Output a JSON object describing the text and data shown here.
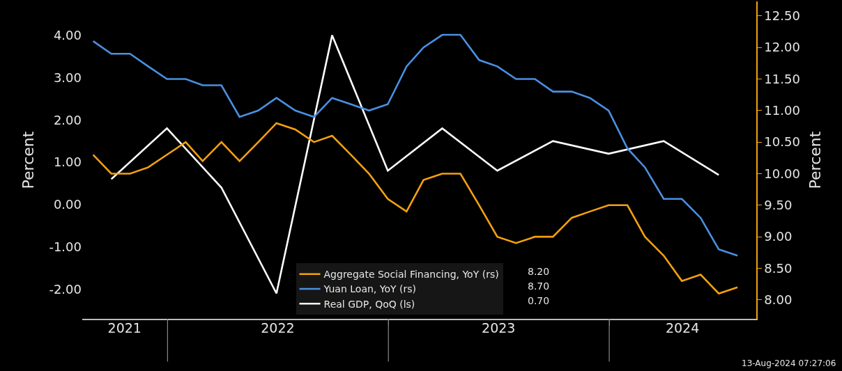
{
  "chart_data": {
    "type": "line",
    "ylabel": "Percent",
    "y2label": "Percent",
    "x": [
      "2021-08-31",
      "2021-09-30",
      "2021-10-31",
      "2021-11-30",
      "2021-12-31",
      "2022-01-31",
      "2022-02-28",
      "2022-03-31",
      "2022-04-30",
      "2022-05-31",
      "2022-06-30",
      "2022-07-31",
      "2022-08-31",
      "2022-09-30",
      "2022-10-31",
      "2022-11-30",
      "2022-12-31",
      "2023-01-31",
      "2023-02-28",
      "2023-03-31",
      "2023-04-30",
      "2023-05-31",
      "2023-06-30",
      "2023-07-31",
      "2023-08-31",
      "2023-09-30",
      "2023-10-31",
      "2023-11-30",
      "2023-12-31",
      "2024-01-31",
      "2024-02-29",
      "2024-03-31",
      "2024-04-30",
      "2024-05-31",
      "2024-06-30",
      "2024-07-31"
    ],
    "series": [
      {
        "name": "Aggregate Social Financing, YoY (rs)",
        "color": "#f5a00f",
        "axis": "y2",
        "values": [
          10.3,
          10.0,
          10.0,
          10.1,
          10.3,
          10.5,
          10.2,
          10.5,
          10.2,
          10.5,
          10.8,
          10.7,
          10.5,
          10.6,
          10.3,
          10.0,
          9.6,
          9.4,
          9.9,
          10.0,
          10.0,
          9.5,
          9.0,
          8.9,
          9.0,
          9.0,
          9.3,
          9.4,
          9.5,
          9.5,
          9.0,
          8.7,
          8.3,
          8.4,
          8.1,
          8.2
        ]
      },
      {
        "name": "Yuan Loan, YoY (rs)",
        "color": "#4a90e2",
        "axis": "y2",
        "values": [
          12.1,
          11.9,
          11.9,
          11.7,
          11.5,
          11.5,
          11.4,
          11.4,
          10.9,
          11.0,
          11.2,
          11.0,
          10.9,
          11.2,
          11.1,
          11.0,
          11.1,
          11.7,
          12.0,
          12.2,
          12.2,
          11.8,
          11.7,
          11.5,
          11.5,
          11.3,
          11.3,
          11.2,
          11.0,
          10.4,
          10.1,
          9.6,
          9.6,
          9.3,
          8.8,
          8.7
        ]
      },
      {
        "name": "Real GDP, QoQ (ls)",
        "color": "#ffffff",
        "axis": "y",
        "x": [
          "2021-09-30",
          "2021-12-31",
          "2022-03-31",
          "2022-06-30",
          "2022-09-30",
          "2022-12-31",
          "2023-03-31",
          "2023-06-30",
          "2023-09-30",
          "2023-12-31",
          "2024-03-31",
          "2024-06-30"
        ],
        "values": [
          0.6,
          1.8,
          0.4,
          -2.1,
          4.0,
          0.8,
          1.8,
          0.8,
          1.5,
          1.2,
          1.5,
          0.7
        ]
      }
    ],
    "xlim": [
      "2021-08-13",
      "2024-08-31"
    ],
    "xticks": [
      {
        "value": "2021-10-22",
        "label": "2021"
      },
      {
        "value": "2022-01-01",
        "label": null
      },
      {
        "value": "2022-07-02",
        "label": "2022"
      },
      {
        "value": "2023-01-01",
        "label": null
      },
      {
        "value": "2023-07-02",
        "label": "2023"
      },
      {
        "value": "2024-01-01",
        "label": null
      },
      {
        "value": "2024-05-01",
        "label": "2024"
      }
    ],
    "ylim": [
      -2.7,
      4.8
    ],
    "yticks": [
      {
        "value": -2,
        "label": "-2.00"
      },
      {
        "value": -1,
        "label": "-1.00"
      },
      {
        "value": 0,
        "label": "0.00"
      },
      {
        "value": 1,
        "label": "1.00"
      },
      {
        "value": 2,
        "label": "2.00"
      },
      {
        "value": 3,
        "label": "3.00"
      },
      {
        "value": 4,
        "label": "4.00"
      }
    ],
    "y2lim": [
      7.7,
      12.73
    ],
    "y2ticks": [
      {
        "value": 8,
        "label": "8.00"
      },
      {
        "value": 8.5,
        "label": "8.50"
      },
      {
        "value": 9,
        "label": "9.00"
      },
      {
        "value": 9.5,
        "label": "9.50"
      },
      {
        "value": 10,
        "label": "10.00"
      },
      {
        "value": 10.5,
        "label": "10.50"
      },
      {
        "value": 11,
        "label": "11.00"
      },
      {
        "value": 11.5,
        "label": "11.50"
      },
      {
        "value": 12,
        "label": "12.00"
      },
      {
        "value": 12.5,
        "label": "12.50"
      }
    ],
    "annotations": [
      "8.20",
      "8.70",
      "0.70",
      "13-Aug-2024 07:27:06"
    ],
    "legend": "bottom",
    "grid": false,
    "marker": "none",
    "line_style": "solid"
  }
}
